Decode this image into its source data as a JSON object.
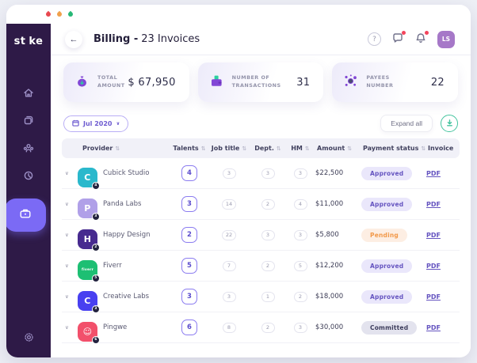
{
  "window": {
    "controls": [
      {
        "name": "close",
        "color": "#e8484f"
      },
      {
        "name": "minimize",
        "color": "#f0a04b"
      },
      {
        "name": "maximize",
        "color": "#27b876"
      }
    ]
  },
  "sidebar": {
    "logo_pre": "st",
    "logo_post": "ke",
    "drop_color": "#2bd0a0",
    "items": [
      {
        "id": "home",
        "active": false
      },
      {
        "id": "projects",
        "active": false
      },
      {
        "id": "team",
        "active": false
      },
      {
        "id": "history",
        "active": false
      },
      {
        "id": "billing",
        "active": true
      },
      {
        "id": "settings",
        "active": false
      }
    ]
  },
  "header": {
    "title_bold": "Billing -",
    "title_regular": "23 Invoices",
    "avatar_initials": "LS"
  },
  "stats": [
    {
      "icon": "money-bag-icon",
      "label_line1": "TOTAL",
      "label_line2": "AMOUNT",
      "value": "$ 67,950"
    },
    {
      "icon": "wallet-icon",
      "label_line1": "NUMBER OF",
      "label_line2": "TRANSACTIONS",
      "value": "31"
    },
    {
      "icon": "network-icon",
      "label_line1": "PAYEES",
      "label_line2": "NUMBER",
      "value": "22"
    }
  ],
  "toolbar": {
    "month_filter": "Jul 2020",
    "expand_all": "Expand all"
  },
  "icons": {
    "back": "←",
    "chevron_down": "∨",
    "sort": "⇅",
    "help": "?"
  },
  "status_colors": {
    "approved": {
      "bg": "#eae7fb",
      "fg": "#6554c0"
    },
    "pending": {
      "bg": "#fdeee3",
      "fg": "#f2994a"
    },
    "committed": {
      "bg": "#e3e3ee",
      "fg": "#3d3d5c"
    }
  },
  "table": {
    "columns": [
      {
        "label": "Provider",
        "sortable": true
      },
      {
        "label": "Talents",
        "sortable": true
      },
      {
        "label": "Job title",
        "sortable": true
      },
      {
        "label": "Dept.",
        "sortable": true
      },
      {
        "label": "HM",
        "sortable": true
      },
      {
        "label": "Amount",
        "sortable": true
      },
      {
        "label": "Payment status",
        "sortable": true
      },
      {
        "label": "Invoice",
        "sortable": false
      }
    ],
    "rows": [
      {
        "provider": "Cubick Studio",
        "logo_color": "#2ab8cc",
        "logo_label": "C",
        "badge": "4",
        "talents": "4",
        "job_title": "3",
        "dept": "3",
        "hm": "3",
        "amount": "$22,500",
        "status": "Approved",
        "status_type": "approved",
        "invoice": "PDF"
      },
      {
        "provider": "Panda Labs",
        "logo_color": "#b0a0e8",
        "logo_label": "P",
        "badge": "3",
        "talents": "3",
        "job_title": "14",
        "dept": "2",
        "hm": "4",
        "amount": "$11,000",
        "status": "Approved",
        "status_type": "approved",
        "invoice": "PDF"
      },
      {
        "provider": "Happy Design",
        "logo_color": "#472a8f",
        "logo_label": "H",
        "badge": "2",
        "talents": "2",
        "job_title": "22",
        "dept": "3",
        "hm": "3",
        "amount": "$5,800",
        "status": "Pending",
        "status_type": "pending",
        "invoice": "PDF"
      },
      {
        "provider": "Fiverr",
        "logo_color": "#1dbf73",
        "logo_label": "fiverr",
        "badge": "5",
        "talents": "5",
        "job_title": "7",
        "dept": "2",
        "hm": "5",
        "amount": "$12,200",
        "status": "Approved",
        "status_type": "approved",
        "invoice": "PDF"
      },
      {
        "provider": "Creative Labs",
        "logo_color": "#4840f0",
        "logo_label": "C",
        "badge": "3",
        "talents": "3",
        "job_title": "3",
        "dept": "1",
        "hm": "2",
        "amount": "$18,000",
        "status": "Approved",
        "status_type": "approved",
        "invoice": "PDF"
      },
      {
        "provider": "Pingwe",
        "logo_color": "#f2506b",
        "logo_label": "☺",
        "badge": "6",
        "talents": "6",
        "job_title": "8",
        "dept": "2",
        "hm": "3",
        "amount": "$30,000",
        "status": "Committed",
        "status_type": "committed",
        "invoice": "PDF"
      }
    ]
  }
}
